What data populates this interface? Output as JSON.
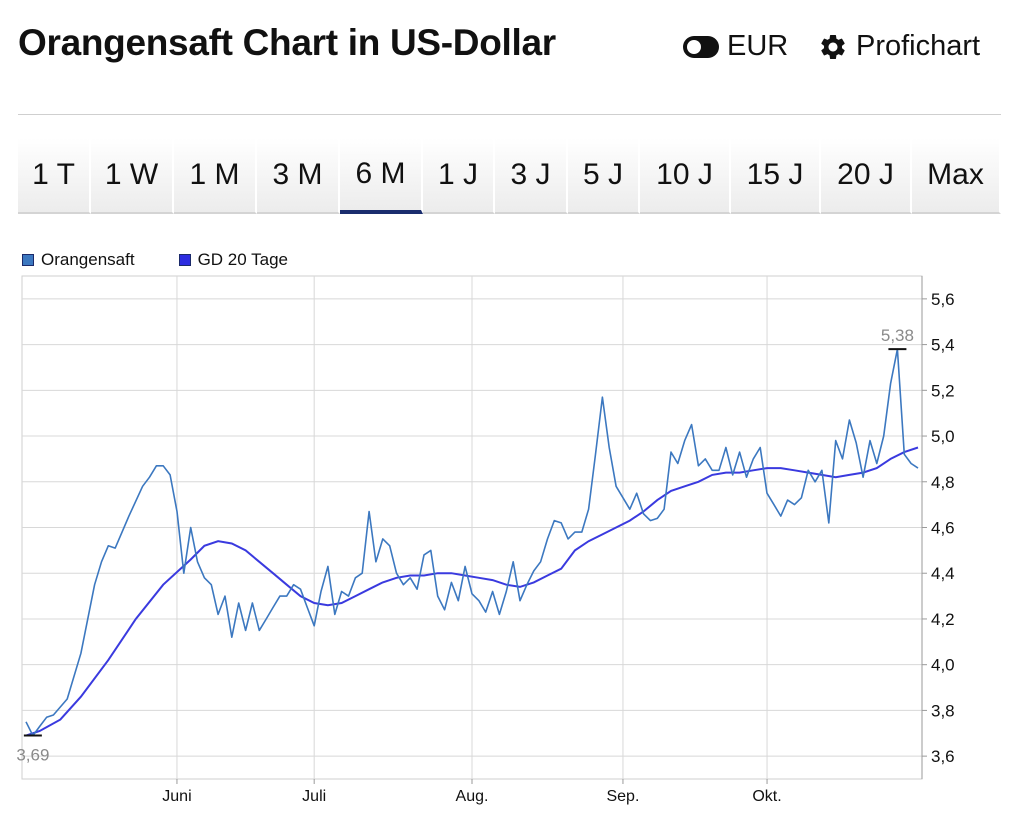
{
  "header": {
    "title": "Orangensaft Chart in US-Dollar",
    "currency_toggle_label": "EUR",
    "profichart_label": "Profichart"
  },
  "tabs": [
    {
      "label": "1 T",
      "active": false
    },
    {
      "label": "1 W",
      "active": false
    },
    {
      "label": "1 M",
      "active": false
    },
    {
      "label": "3 M",
      "active": false
    },
    {
      "label": "6 M",
      "active": true
    },
    {
      "label": "1 J",
      "active": false
    },
    {
      "label": "3 J",
      "active": false
    },
    {
      "label": "5 J",
      "active": false
    },
    {
      "label": "10 J",
      "active": false
    },
    {
      "label": "15 J",
      "active": false
    },
    {
      "label": "20 J",
      "active": false
    },
    {
      "label": "Max",
      "active": false
    }
  ],
  "colors": {
    "price_line": "#3c78c0",
    "sma_line": "#3a3adf",
    "accent_tab": "#1a2d6e",
    "grid": "#d8d8d8"
  },
  "chart_data": {
    "type": "line",
    "title": "Orangensaft Chart in US-Dollar",
    "currency": "US-Dollar",
    "period": "6 M",
    "ylim": [
      3.5,
      5.7
    ],
    "y_ticks": [
      "3,6",
      "3,8",
      "4,0",
      "4,2",
      "4,4",
      "4,6",
      "4,8",
      "5,0",
      "5,2",
      "5,4",
      "5,6"
    ],
    "y_tick_values": [
      3.6,
      3.8,
      4.0,
      4.2,
      4.4,
      4.6,
      4.8,
      5.0,
      5.2,
      5.4,
      5.6
    ],
    "x_count": 131,
    "x_ticks": [
      {
        "label": "Juni",
        "index": 22
      },
      {
        "label": "Juli",
        "index": 42
      },
      {
        "label": "Aug.",
        "index": 65
      },
      {
        "label": "Sep.",
        "index": 87
      },
      {
        "label": "Okt.",
        "index": 108
      }
    ],
    "legend": [
      "Orangensaft",
      "GD 20 Tage"
    ],
    "grid": true,
    "annotations": [
      {
        "label": "3,69",
        "index": 1,
        "value": 3.69
      },
      {
        "label": "5,38",
        "index": 127,
        "value": 5.38
      }
    ],
    "series": [
      {
        "name": "Orangensaft",
        "anchors": [
          [
            0,
            3.75
          ],
          [
            1,
            3.69
          ],
          [
            2,
            3.73
          ],
          [
            3,
            3.77
          ],
          [
            4,
            3.78
          ],
          [
            6,
            3.85
          ],
          [
            8,
            4.05
          ],
          [
            10,
            4.35
          ],
          [
            11,
            4.45
          ],
          [
            12,
            4.52
          ],
          [
            13,
            4.51
          ],
          [
            15,
            4.65
          ],
          [
            17,
            4.78
          ],
          [
            18,
            4.82
          ],
          [
            19,
            4.87
          ],
          [
            20,
            4.87
          ],
          [
            21,
            4.83
          ],
          [
            22,
            4.67
          ],
          [
            23,
            4.4
          ],
          [
            24,
            4.6
          ],
          [
            25,
            4.45
          ],
          [
            26,
            4.38
          ],
          [
            27,
            4.35
          ],
          [
            28,
            4.22
          ],
          [
            29,
            4.3
          ],
          [
            30,
            4.12
          ],
          [
            31,
            4.27
          ],
          [
            32,
            4.15
          ],
          [
            33,
            4.27
          ],
          [
            34,
            4.15
          ],
          [
            35,
            4.2
          ],
          [
            36,
            4.25
          ],
          [
            37,
            4.3
          ],
          [
            38,
            4.3
          ],
          [
            39,
            4.35
          ],
          [
            40,
            4.33
          ],
          [
            41,
            4.25
          ],
          [
            42,
            4.17
          ],
          [
            43,
            4.32
          ],
          [
            44,
            4.43
          ],
          [
            45,
            4.22
          ],
          [
            46,
            4.32
          ],
          [
            47,
            4.3
          ],
          [
            48,
            4.38
          ],
          [
            49,
            4.4
          ],
          [
            50,
            4.67
          ],
          [
            51,
            4.45
          ],
          [
            52,
            4.55
          ],
          [
            53,
            4.52
          ],
          [
            54,
            4.4
          ],
          [
            55,
            4.35
          ],
          [
            56,
            4.38
          ],
          [
            57,
            4.33
          ],
          [
            58,
            4.48
          ],
          [
            59,
            4.5
          ],
          [
            60,
            4.3
          ],
          [
            61,
            4.24
          ],
          [
            62,
            4.36
          ],
          [
            63,
            4.28
          ],
          [
            64,
            4.43
          ],
          [
            65,
            4.31
          ],
          [
            66,
            4.28
          ],
          [
            67,
            4.23
          ],
          [
            68,
            4.32
          ],
          [
            69,
            4.22
          ],
          [
            70,
            4.32
          ],
          [
            71,
            4.45
          ],
          [
            72,
            4.28
          ],
          [
            73,
            4.35
          ],
          [
            74,
            4.41
          ],
          [
            75,
            4.45
          ],
          [
            76,
            4.55
          ],
          [
            77,
            4.63
          ],
          [
            78,
            4.62
          ],
          [
            79,
            4.55
          ],
          [
            80,
            4.58
          ],
          [
            81,
            4.58
          ],
          [
            82,
            4.68
          ],
          [
            83,
            4.92
          ],
          [
            84,
            5.17
          ],
          [
            85,
            4.95
          ],
          [
            86,
            4.78
          ],
          [
            87,
            4.73
          ],
          [
            88,
            4.68
          ],
          [
            89,
            4.75
          ],
          [
            90,
            4.66
          ],
          [
            91,
            4.63
          ],
          [
            92,
            4.64
          ],
          [
            93,
            4.68
          ],
          [
            94,
            4.93
          ],
          [
            95,
            4.88
          ],
          [
            96,
            4.98
          ],
          [
            97,
            5.05
          ],
          [
            98,
            4.87
          ],
          [
            99,
            4.9
          ],
          [
            100,
            4.85
          ],
          [
            101,
            4.85
          ],
          [
            102,
            4.95
          ],
          [
            103,
            4.83
          ],
          [
            104,
            4.93
          ],
          [
            105,
            4.82
          ],
          [
            106,
            4.9
          ],
          [
            107,
            4.95
          ],
          [
            108,
            4.75
          ],
          [
            109,
            4.7
          ],
          [
            110,
            4.65
          ],
          [
            111,
            4.72
          ],
          [
            112,
            4.7
          ],
          [
            113,
            4.73
          ],
          [
            114,
            4.85
          ],
          [
            115,
            4.8
          ],
          [
            116,
            4.85
          ],
          [
            117,
            4.62
          ],
          [
            118,
            4.98
          ],
          [
            119,
            4.9
          ],
          [
            120,
            5.07
          ],
          [
            121,
            4.97
          ],
          [
            122,
            4.82
          ],
          [
            123,
            4.98
          ],
          [
            124,
            4.88
          ],
          [
            125,
            5.0
          ],
          [
            126,
            5.23
          ],
          [
            127,
            5.38
          ],
          [
            128,
            4.92
          ],
          [
            129,
            4.88
          ],
          [
            130,
            4.86
          ]
        ]
      },
      {
        "name": "GD 20 Tage",
        "anchors": [
          [
            0,
            3.69
          ],
          [
            2,
            3.71
          ],
          [
            5,
            3.76
          ],
          [
            8,
            3.86
          ],
          [
            12,
            4.02
          ],
          [
            16,
            4.2
          ],
          [
            20,
            4.35
          ],
          [
            24,
            4.46
          ],
          [
            26,
            4.52
          ],
          [
            28,
            4.54
          ],
          [
            30,
            4.53
          ],
          [
            32,
            4.5
          ],
          [
            34,
            4.45
          ],
          [
            36,
            4.4
          ],
          [
            38,
            4.35
          ],
          [
            40,
            4.3
          ],
          [
            42,
            4.27
          ],
          [
            44,
            4.26
          ],
          [
            46,
            4.27
          ],
          [
            48,
            4.3
          ],
          [
            50,
            4.33
          ],
          [
            52,
            4.36
          ],
          [
            54,
            4.38
          ],
          [
            56,
            4.39
          ],
          [
            58,
            4.39
          ],
          [
            60,
            4.4
          ],
          [
            62,
            4.4
          ],
          [
            64,
            4.39
          ],
          [
            66,
            4.38
          ],
          [
            68,
            4.37
          ],
          [
            70,
            4.35
          ],
          [
            72,
            4.34
          ],
          [
            74,
            4.36
          ],
          [
            76,
            4.39
          ],
          [
            78,
            4.42
          ],
          [
            80,
            4.5
          ],
          [
            82,
            4.54
          ],
          [
            84,
            4.57
          ],
          [
            86,
            4.6
          ],
          [
            88,
            4.63
          ],
          [
            90,
            4.67
          ],
          [
            92,
            4.72
          ],
          [
            94,
            4.76
          ],
          [
            96,
            4.78
          ],
          [
            98,
            4.8
          ],
          [
            100,
            4.83
          ],
          [
            102,
            4.84
          ],
          [
            104,
            4.84
          ],
          [
            106,
            4.85
          ],
          [
            108,
            4.86
          ],
          [
            110,
            4.86
          ],
          [
            112,
            4.85
          ],
          [
            114,
            4.84
          ],
          [
            116,
            4.83
          ],
          [
            118,
            4.82
          ],
          [
            120,
            4.83
          ],
          [
            122,
            4.84
          ],
          [
            124,
            4.86
          ],
          [
            126,
            4.9
          ],
          [
            128,
            4.93
          ],
          [
            130,
            4.95
          ]
        ]
      }
    ]
  }
}
